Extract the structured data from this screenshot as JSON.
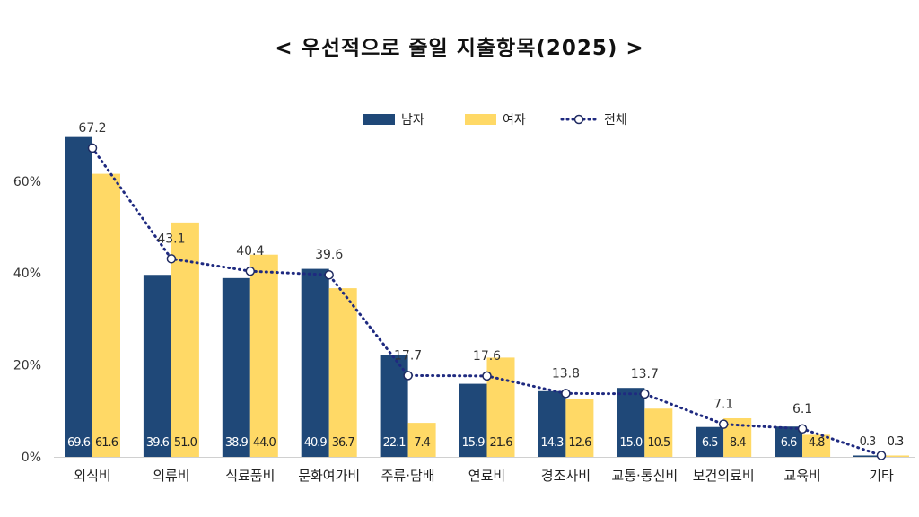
{
  "chart_data": {
    "type": "bar",
    "title": "< 우선적으로 줄일 지출항목(2025) >",
    "categories": [
      "외식비",
      "의류비",
      "식료품비",
      "문화여가비",
      "주류·담배",
      "연료비",
      "경조사비",
      "교통·통신비",
      "보건의료비",
      "교육비",
      "기타"
    ],
    "series": [
      {
        "name": "남자",
        "type": "bar",
        "color": "#1F4878",
        "values": [
          69.6,
          39.6,
          38.9,
          40.9,
          22.1,
          15.9,
          14.3,
          15.0,
          6.5,
          6.6,
          0.3
        ]
      },
      {
        "name": "여자",
        "type": "bar",
        "color": "#FFD966",
        "values": [
          61.6,
          51.0,
          44.0,
          36.7,
          7.4,
          21.6,
          12.6,
          10.5,
          8.4,
          4.8,
          0.3
        ]
      },
      {
        "name": "전체",
        "type": "line",
        "style": "dotted",
        "color": "#1F2A80",
        "values": [
          67.2,
          43.1,
          40.4,
          39.6,
          17.7,
          17.6,
          13.8,
          13.7,
          7.1,
          6.1,
          0.3
        ]
      }
    ],
    "yticks": [
      "0%",
      "20%",
      "40%",
      "60%"
    ],
    "ytick_values": [
      0,
      20,
      40,
      60
    ],
    "ylim": [
      0,
      75
    ],
    "grid": false,
    "legend": "top-center"
  }
}
